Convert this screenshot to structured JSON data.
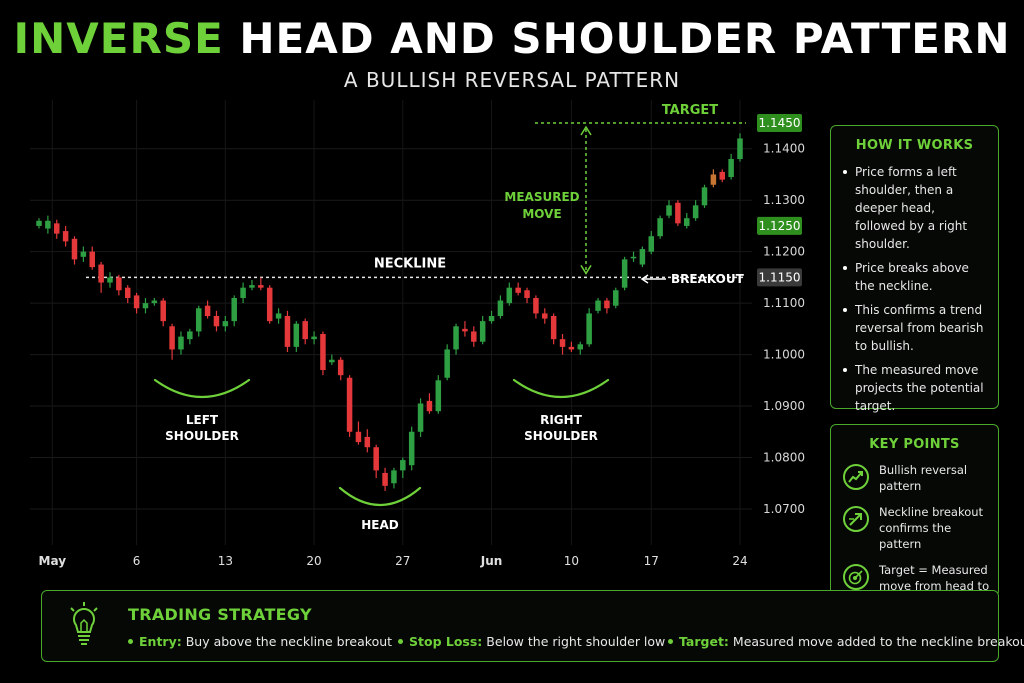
{
  "header": {
    "title_green": "INVERSE",
    "title_white": "HEAD AND SHOULDER PATTERN",
    "subtitle": "A BULLISH REVERSAL PATTERN"
  },
  "chart_data": {
    "type": "candlestick",
    "title": "INVERSE HEAD AND SHOULDER PATTERN",
    "subtitle": "A BULLISH REVERSAL PATTERN",
    "ylim": [
      1.063,
      1.1485
    ],
    "y_ticks": [
      1.07,
      1.08,
      1.09,
      1.1,
      1.11,
      1.12,
      1.13,
      1.14
    ],
    "y_tick_labels": [
      "1.0700",
      "1.0800",
      "1.0900",
      "1.1000",
      "1.1100",
      "1.1200",
      "1.1300",
      "1.1400"
    ],
    "x_tick_labels": [
      {
        "label": "May",
        "i": 1.5
      },
      {
        "label": "6",
        "i": 11
      },
      {
        "label": "13",
        "i": 21
      },
      {
        "label": "20",
        "i": 31
      },
      {
        "label": "27",
        "i": 41
      },
      {
        "label": "Jun",
        "i": 51
      },
      {
        "label": "10",
        "i": 60
      },
      {
        "label": "17",
        "i": 69
      },
      {
        "label": "24",
        "i": 79
      }
    ],
    "grid": true,
    "candles": [
      [
        1.125,
        1.126,
        1.1265,
        1.1245
      ],
      [
        1.1245,
        1.126,
        1.127,
        1.1235
      ],
      [
        1.1255,
        1.1235,
        1.1262,
        1.1225
      ],
      [
        1.124,
        1.122,
        1.125,
        1.121
      ],
      [
        1.1225,
        1.1185,
        1.123,
        1.1175
      ],
      [
        1.119,
        1.12,
        1.121,
        1.118
      ],
      [
        1.12,
        1.117,
        1.121,
        1.1165
      ],
      [
        1.1175,
        1.114,
        1.118,
        1.112
      ],
      [
        1.114,
        1.115,
        1.116,
        1.113
      ],
      [
        1.115,
        1.1125,
        1.1155,
        1.1115
      ],
      [
        1.113,
        1.111,
        1.1135,
        1.11
      ],
      [
        1.1115,
        1.109,
        1.112,
        1.108
      ],
      [
        1.109,
        1.11,
        1.111,
        1.108
      ],
      [
        1.11,
        1.1105,
        1.111,
        1.1095
      ],
      [
        1.1105,
        1.1065,
        1.111,
        1.1055
      ],
      [
        1.1055,
        1.101,
        1.106,
        1.099
      ],
      [
        1.101,
        1.1035,
        1.1045,
        1.1
      ],
      [
        1.103,
        1.1045,
        1.105,
        1.102
      ],
      [
        1.1045,
        1.109,
        1.1095,
        1.1035
      ],
      [
        1.1095,
        1.1075,
        1.1105,
        1.107
      ],
      [
        1.1075,
        1.1055,
        1.1085,
        1.1045
      ],
      [
        1.1055,
        1.1065,
        1.1075,
        1.1045
      ],
      [
        1.1065,
        1.111,
        1.1115,
        1.1055
      ],
      [
        1.111,
        1.113,
        1.114,
        1.11
      ],
      [
        1.113,
        1.1135,
        1.1145,
        1.1125
      ],
      [
        1.1135,
        1.113,
        1.115,
        1.1125
      ],
      [
        1.113,
        1.1065,
        1.1135,
        1.106
      ],
      [
        1.107,
        1.108,
        1.109,
        1.106
      ],
      [
        1.1075,
        1.1015,
        1.1085,
        1.1005
      ],
      [
        1.1015,
        1.106,
        1.1065,
        1.1005
      ],
      [
        1.1065,
        1.103,
        1.107,
        1.102
      ],
      [
        1.103,
        1.1035,
        1.1045,
        1.102
      ],
      [
        1.104,
        1.097,
        1.1045,
        1.096
      ],
      [
        1.0985,
        1.099,
        1.1,
        1.098
      ],
      [
        1.099,
        1.096,
        1.0995,
        1.095
      ],
      [
        1.0955,
        1.085,
        1.096,
        1.084
      ],
      [
        1.085,
        1.083,
        1.087,
        1.0825
      ],
      [
        1.084,
        1.082,
        1.0855,
        1.081
      ],
      [
        1.082,
        1.0775,
        1.0825,
        1.076
      ],
      [
        1.077,
        1.0745,
        1.078,
        1.0735
      ],
      [
        1.075,
        1.0775,
        1.078,
        1.074
      ],
      [
        1.0775,
        1.0795,
        1.08,
        1.076
      ],
      [
        1.0785,
        1.085,
        1.086,
        1.0775
      ],
      [
        1.085,
        1.0905,
        1.0915,
        1.084
      ],
      [
        1.091,
        1.089,
        1.0925,
        1.0885
      ],
      [
        1.089,
        1.095,
        1.096,
        1.0885
      ],
      [
        1.0955,
        1.101,
        1.102,
        1.095
      ],
      [
        1.101,
        1.1055,
        1.106,
        1.1
      ],
      [
        1.105,
        1.1045,
        1.1065,
        1.1035
      ],
      [
        1.1045,
        1.1025,
        1.1055,
        1.1015
      ],
      [
        1.1025,
        1.1065,
        1.1075,
        1.102
      ],
      [
        1.1065,
        1.1075,
        1.1085,
        1.106
      ],
      [
        1.1075,
        1.1105,
        1.1115,
        1.107
      ],
      [
        1.11,
        1.113,
        1.114,
        1.1095
      ],
      [
        1.113,
        1.112,
        1.114,
        1.1115
      ],
      [
        1.1125,
        1.111,
        1.113,
        1.11
      ],
      [
        1.111,
        1.108,
        1.1115,
        1.107
      ],
      [
        1.108,
        1.107,
        1.109,
        1.106
      ],
      [
        1.1075,
        1.103,
        1.108,
        1.102
      ],
      [
        1.103,
        1.1015,
        1.104,
        1.1
      ],
      [
        1.1015,
        1.101,
        1.1025,
        1.1005
      ],
      [
        1.101,
        1.102,
        1.1025,
        1.1
      ],
      [
        1.102,
        1.108,
        1.109,
        1.1015
      ],
      [
        1.1085,
        1.1105,
        1.111,
        1.108
      ],
      [
        1.1105,
        1.109,
        1.111,
        1.108
      ],
      [
        1.1095,
        1.1125,
        1.113,
        1.109
      ],
      [
        1.113,
        1.1185,
        1.119,
        1.1125
      ],
      [
        1.119,
        1.119,
        1.12,
        1.118
      ],
      [
        1.1175,
        1.1205,
        1.121,
        1.117
      ],
      [
        1.12,
        1.123,
        1.124,
        1.1195
      ],
      [
        1.123,
        1.1265,
        1.127,
        1.1225
      ],
      [
        1.127,
        1.129,
        1.13,
        1.1265
      ],
      [
        1.1295,
        1.1255,
        1.13,
        1.125
      ],
      [
        1.125,
        1.1265,
        1.1275,
        1.1245
      ],
      [
        1.1265,
        1.129,
        1.13,
        1.126
      ],
      [
        1.129,
        1.1325,
        1.133,
        1.1285
      ],
      [
        1.133,
        1.135,
        1.136,
        1.1325
      ],
      [
        1.1355,
        1.134,
        1.136,
        1.1335
      ],
      [
        1.1345,
        1.138,
        1.139,
        1.134
      ],
      [
        1.138,
        1.142,
        1.143,
        1.1375
      ]
    ],
    "candle_highlight_index": 76,
    "neckline": 1.115,
    "target": 1.145,
    "price_labels": [
      {
        "value": 1.145,
        "label": "1.1450",
        "style": "green"
      },
      {
        "value": 1.125,
        "label": "1.1250",
        "style": "green"
      },
      {
        "value": 1.115,
        "label": "1.1150",
        "style": "gray"
      }
    ],
    "annotations": {
      "neckline": "NECKLINE",
      "target": "TARGET",
      "measured_move_1": "MEASURED",
      "measured_move_2": "MOVE",
      "breakout": "BREAKOUT",
      "left_shoulder_1": "LEFT",
      "left_shoulder_2": "SHOULDER",
      "head": "HEAD",
      "right_shoulder_1": "RIGHT",
      "right_shoulder_2": "SHOULDER"
    },
    "colors": {
      "up": "#2ea043",
      "down": "#e5383b",
      "highlight": "#c87533",
      "accent": "#6fd13a"
    }
  },
  "how_it_works": {
    "title": "HOW IT WORKS",
    "items": [
      "Price forms a left shoulder, then a deeper head, followed by a right shoulder.",
      "Price breaks above the neckline.",
      "This confirms a trend reversal from bearish to bullish.",
      "The measured move projects the potential target."
    ]
  },
  "key_points": {
    "title": "KEY POINTS",
    "items": [
      {
        "icon": "trend-up-icon",
        "text": "Bullish reversal pattern"
      },
      {
        "icon": "breakout-arrow-icon",
        "text": "Neckline breakout confirms the pattern"
      },
      {
        "icon": "target-icon",
        "text": "Target = Measured move from head to neckline"
      }
    ]
  },
  "strategy": {
    "title": "TRADING STRATEGY",
    "icon": "lightbulb-icon",
    "entry_label": "Entry:",
    "entry_text": "Buy above the neckline breakout",
    "stop_label": "Stop Loss:",
    "stop_text": "Below the right shoulder low",
    "target_label": "Target:",
    "target_text": "Measured move added to the neckline breakout"
  }
}
